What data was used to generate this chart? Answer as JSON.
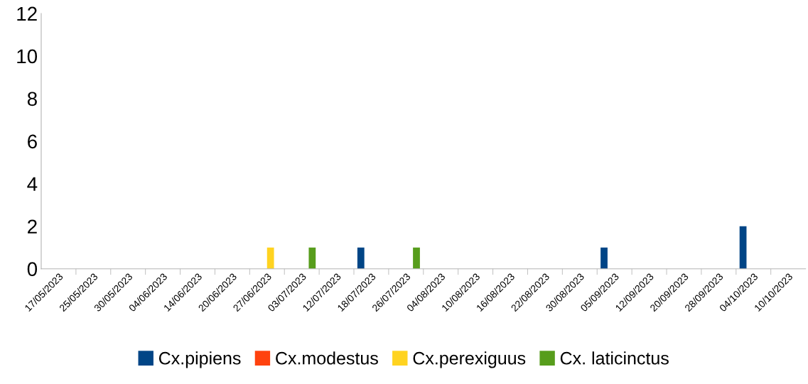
{
  "chart_data": {
    "type": "bar",
    "categories": [
      "17/05/2023",
      "25/05/2023",
      "30/05/2023",
      "04/06/2023",
      "14/06/2023",
      "20/06/2023",
      "27/06/2023",
      "03/07/2023",
      "12/07/2023",
      "18/07/2023",
      "26/07/2023",
      "04/08/2023",
      "10/08/2023",
      "16/08/2023",
      "22/08/2023",
      "30/08/2023",
      "05/09/2023",
      "12/09/2023",
      "20/09/2023",
      "28/09/2023",
      "04/10/2023",
      "10/10/2023"
    ],
    "series": [
      {
        "name": "Cx.pipiens",
        "color": "#004586",
        "values": [
          0,
          0,
          0,
          0,
          0,
          0,
          0,
          0,
          0,
          1,
          0,
          0,
          0,
          0,
          0,
          0,
          1,
          0,
          0,
          0,
          2,
          0
        ]
      },
      {
        "name": "Cx.modestus",
        "color": "#ff420e",
        "values": [
          0,
          0,
          0,
          0,
          0,
          0,
          0,
          0,
          0,
          0,
          0,
          0,
          0,
          0,
          0,
          0,
          0,
          0,
          0,
          0,
          0,
          0
        ]
      },
      {
        "name": "Cx.perexiguus",
        "color": "#ffd320",
        "values": [
          0,
          0,
          0,
          0,
          0,
          0,
          1,
          0,
          0,
          0,
          0,
          0,
          0,
          0,
          0,
          0,
          0,
          0,
          0,
          0,
          0,
          0
        ]
      },
      {
        "name": "Cx. laticinctus",
        "color": "#579d1c",
        "values": [
          0,
          0,
          0,
          0,
          0,
          0,
          0,
          1,
          0,
          0,
          1,
          0,
          0,
          0,
          0,
          0,
          0,
          0,
          0,
          0,
          0,
          0
        ]
      }
    ],
    "ylim": [
      0,
      12
    ],
    "yticks": [
      0,
      2,
      4,
      6,
      8,
      10,
      12
    ],
    "grid": false,
    "legend": "bottom"
  }
}
